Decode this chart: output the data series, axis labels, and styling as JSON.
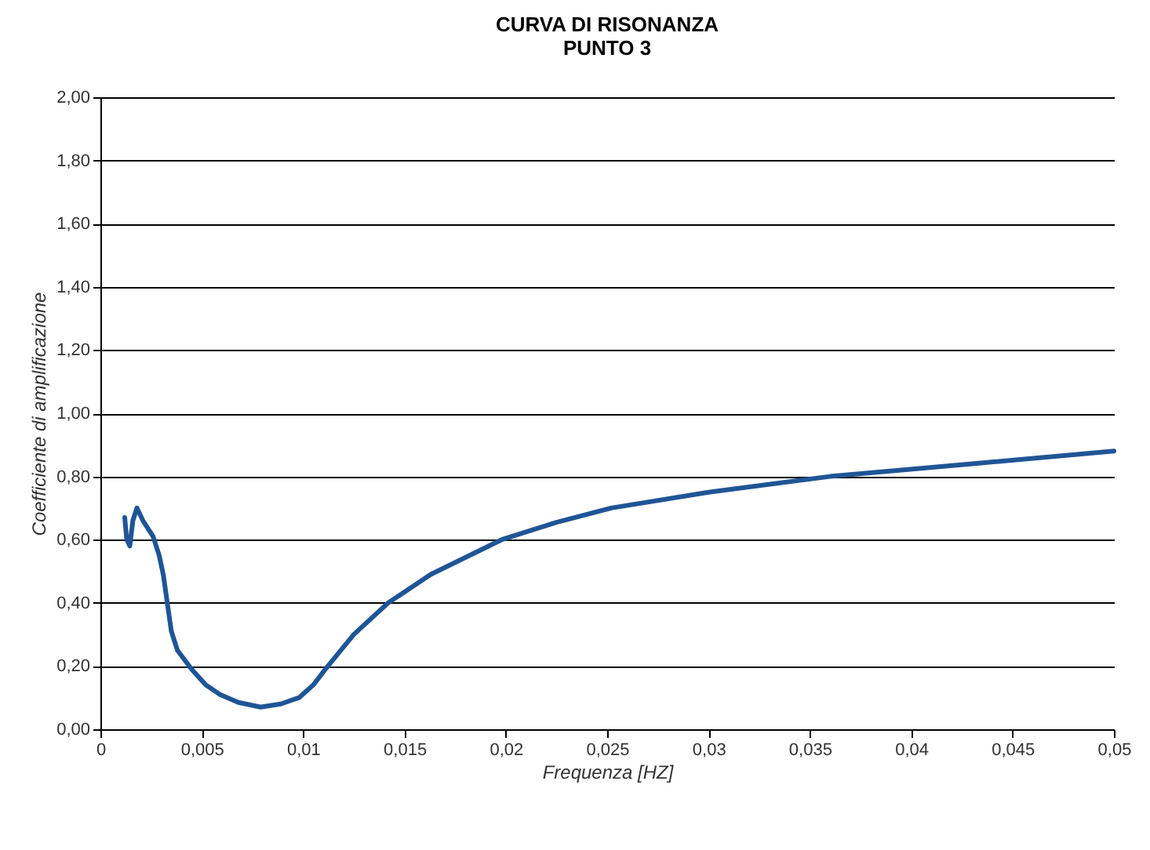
{
  "chart_data": {
    "type": "line",
    "title": "CURVA DI RISONANZA",
    "subtitle": "PUNTO 3",
    "xlabel": "Frequenza [HZ]",
    "ylabel": "Coefficiente di amplificazione",
    "x": [
      0.0012,
      0.0013,
      0.00145,
      0.0016,
      0.0018,
      0.0021,
      0.0026,
      0.0029,
      0.0031,
      0.0033,
      0.0035,
      0.0038,
      0.0045,
      0.0052,
      0.0059,
      0.0068,
      0.0079,
      0.0089,
      0.0098,
      0.0105,
      0.0111,
      0.0125,
      0.0142,
      0.0163,
      0.0198,
      0.0225,
      0.0252,
      0.03,
      0.036,
      0.043,
      0.05
    ],
    "series": [
      {
        "color": "#1f5596",
        "values": [
          0.67,
          0.6,
          0.58,
          0.66,
          0.7,
          0.66,
          0.61,
          0.55,
          0.49,
          0.4,
          0.31,
          0.25,
          0.19,
          0.14,
          0.11,
          0.085,
          0.07,
          0.08,
          0.1,
          0.14,
          0.19,
          0.3,
          0.4,
          0.49,
          0.6,
          0.655,
          0.7,
          0.75,
          0.8,
          0.84,
          0.88
        ]
      }
    ],
    "xlim": [
      0,
      0.05
    ],
    "ylim": [
      0,
      2
    ],
    "xticks": [
      0,
      {
        "value": 0.005,
        "label": "0,005"
      },
      {
        "value": 0.01,
        "label": "0,01"
      },
      {
        "value": 0.015,
        "label": "0,015"
      },
      {
        "value": 0.02,
        "label": "0,02"
      },
      {
        "value": 0.025,
        "label": "0,025"
      },
      {
        "value": 0.03,
        "label": "0,03"
      },
      {
        "value": 0.035,
        "label": "0,035"
      },
      {
        "value": 0.04,
        "label": "0,04"
      },
      {
        "value": 0.045,
        "label": "0,045"
      },
      {
        "value": 0.05,
        "label": "0,05"
      }
    ],
    "yticks": [
      {
        "value": 0,
        "label": "0,00"
      },
      {
        "value": 0.2,
        "label": "0,20"
      },
      {
        "value": 0.4,
        "label": "0,40"
      },
      {
        "value": 0.6,
        "label": "0,60"
      },
      {
        "value": 0.8,
        "label": "0,80"
      },
      {
        "value": 1,
        "label": "1,00"
      },
      {
        "value": 1.2,
        "label": "1,20"
      },
      {
        "value": 1.4,
        "label": "1,40"
      },
      {
        "value": 1.6,
        "label": "1,60"
      },
      {
        "value": 1.8,
        "label": "1,80"
      },
      {
        "value": 2,
        "label": "2,00"
      }
    ],
    "grid": "y",
    "legend": false
  }
}
